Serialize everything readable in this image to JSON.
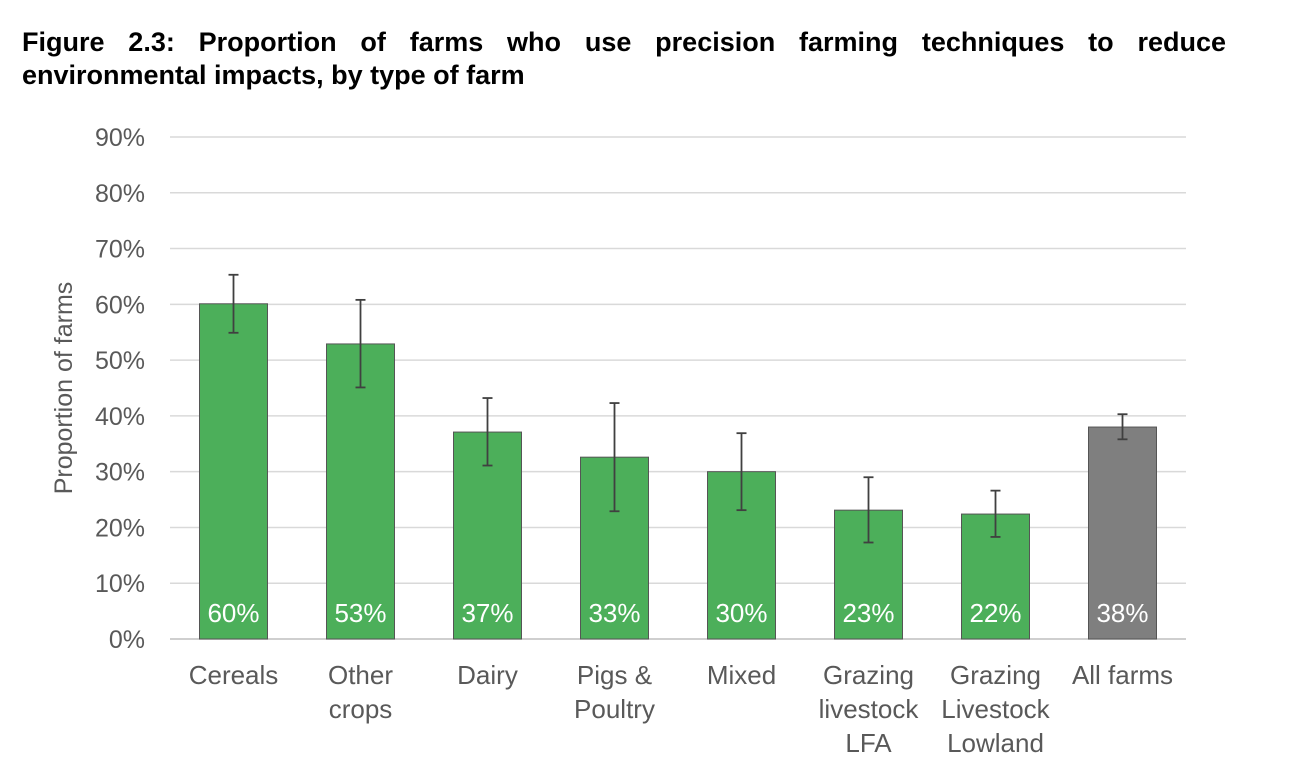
{
  "figure": {
    "title": "Figure 2.3: Proportion of farms who use precision farming techniques to reduce environmental impacts, by type of farm"
  },
  "chart_data": {
    "type": "bar",
    "title": "Figure 2.3: Proportion of farms who use precision farming techniques to reduce environmental impacts, by type of farm",
    "xlabel": "",
    "ylabel": "Proportion of farms",
    "ylim": [
      0,
      90
    ],
    "y_ticks": [
      "0%",
      "10%",
      "20%",
      "30%",
      "40%",
      "50%",
      "60%",
      "70%",
      "80%",
      "90%"
    ],
    "grid": "horizontal",
    "categories": [
      [
        "Cereals"
      ],
      [
        "Other",
        "crops"
      ],
      [
        "Dairy"
      ],
      [
        "Pigs &",
        "Poultry"
      ],
      [
        "Mixed"
      ],
      [
        "Grazing",
        "livestock",
        "LFA"
      ],
      [
        "Grazing",
        "Livestock",
        "Lowland"
      ],
      [
        "All farms"
      ]
    ],
    "values": [
      60,
      53,
      37,
      33,
      30,
      23,
      22,
      38
    ],
    "bar_values": [
      60.1,
      52.9,
      37.1,
      32.6,
      30.0,
      23.1,
      22.4,
      38.0
    ],
    "data_labels": [
      "60%",
      "53%",
      "37%",
      "33%",
      "30%",
      "23%",
      "22%",
      "38%"
    ],
    "error_low": [
      54.9,
      45.1,
      31.1,
      22.9,
      23.1,
      17.3,
      18.3,
      35.8
    ],
    "error_high": [
      65.3,
      60.8,
      43.2,
      42.3,
      36.9,
      29.0,
      26.6,
      40.3
    ],
    "colors": {
      "bar": "#4caf5a",
      "bar_total": "#7f7f7f",
      "bar_edge": "#555555",
      "grid": "#d9d9d9",
      "axis_text": "#595959",
      "error_bar": "#404040",
      "data_label": "#ffffff"
    }
  }
}
